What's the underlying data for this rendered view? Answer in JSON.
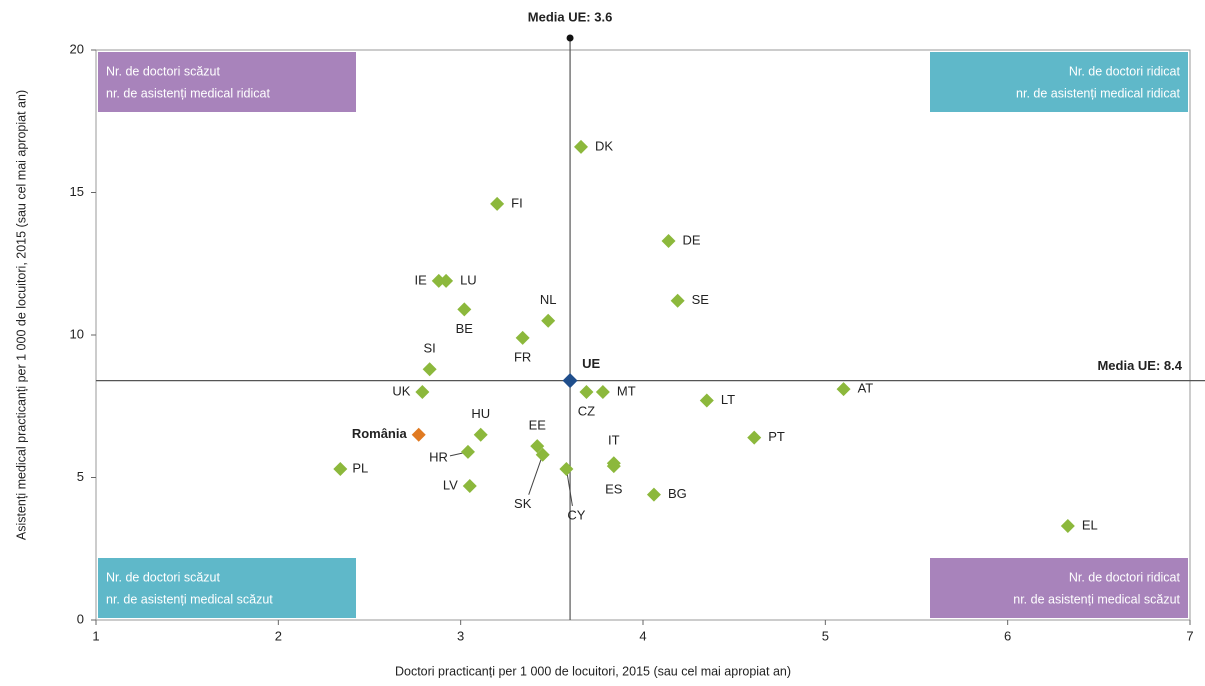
{
  "chart_data": {
    "type": "scatter",
    "x_label": "Doctori practicanți per 1 000 de locuitori, 2015 (sau cel mai apropiat an)",
    "y_label": "Asistenți medical practicanți per 1 000 de locuitori, 2015 (sau cel mai apropiat an)",
    "xlim": [
      1,
      7
    ],
    "ylim": [
      0,
      20
    ],
    "xticks": [
      1,
      2,
      3,
      4,
      5,
      6,
      7
    ],
    "yticks": [
      0,
      5,
      10,
      15,
      20
    ],
    "mean_x": {
      "value": 3.6,
      "label": "Media UE: 3.6"
    },
    "mean_y": {
      "value": 8.4,
      "label": "Media UE: 8.4"
    },
    "quadrants": [
      {
        "corner": "top-left",
        "color": "#a883bb",
        "lines": [
          "Nr. de doctori scăzut",
          "nr. de asistenți medical ridicat"
        ]
      },
      {
        "corner": "top-right",
        "color": "#5fb8c9",
        "lines": [
          "Nr. de doctori ridicat",
          "nr. de asistenți medical ridicat"
        ]
      },
      {
        "corner": "bottom-left",
        "color": "#5fb8c9",
        "lines": [
          "Nr. de doctori scăzut",
          "nr. de asistenți medical scăzut"
        ]
      },
      {
        "corner": "bottom-right",
        "color": "#a883bb",
        "lines": [
          "Nr. de doctori ridicat",
          "nr. de asistenți medical scăzut"
        ]
      }
    ],
    "points": [
      {
        "label": "DK",
        "x": 3.66,
        "y": 16.6,
        "color": "#8cb83c"
      },
      {
        "label": "FI",
        "x": 3.2,
        "y": 14.6,
        "color": "#8cb83c"
      },
      {
        "label": "DE",
        "x": 4.14,
        "y": 13.3,
        "color": "#8cb83c"
      },
      {
        "label": "IE",
        "x": 2.88,
        "y": 11.9,
        "color": "#8cb83c"
      },
      {
        "label": "LU",
        "x": 2.92,
        "y": 11.9,
        "color": "#8cb83c"
      },
      {
        "label": "BE",
        "x": 3.02,
        "y": 10.9,
        "color": "#8cb83c"
      },
      {
        "label": "NL",
        "x": 3.48,
        "y": 10.5,
        "color": "#8cb83c"
      },
      {
        "label": "SE",
        "x": 4.19,
        "y": 11.2,
        "color": "#8cb83c"
      },
      {
        "label": "FR",
        "x": 3.34,
        "y": 9.9,
        "color": "#8cb83c"
      },
      {
        "label": "SI",
        "x": 2.83,
        "y": 8.8,
        "color": "#8cb83c"
      },
      {
        "label": "UE",
        "x": 3.6,
        "y": 8.4,
        "color": "#1f4e8c"
      },
      {
        "label": "UK",
        "x": 2.79,
        "y": 8.0,
        "color": "#8cb83c"
      },
      {
        "label": "CZ",
        "x": 3.69,
        "y": 8.0,
        "color": "#8cb83c"
      },
      {
        "label": "MT",
        "x": 3.78,
        "y": 8.0,
        "color": "#8cb83c"
      },
      {
        "label": "AT",
        "x": 5.1,
        "y": 8.1,
        "color": "#8cb83c"
      },
      {
        "label": "LT",
        "x": 4.35,
        "y": 7.7,
        "color": "#8cb83c"
      },
      {
        "label": "HU",
        "x": 3.11,
        "y": 6.5,
        "color": "#8cb83c"
      },
      {
        "label": "România",
        "x": 2.77,
        "y": 6.5,
        "color": "#e07a21"
      },
      {
        "label": "PT",
        "x": 4.61,
        "y": 6.4,
        "color": "#8cb83c"
      },
      {
        "label": "EE",
        "x": 3.42,
        "y": 6.1,
        "color": "#8cb83c"
      },
      {
        "label": "HR",
        "x": 3.04,
        "y": 5.9,
        "color": "#8cb83c"
      },
      {
        "label": "SK",
        "x": 3.45,
        "y": 5.8,
        "color": "#8cb83c"
      },
      {
        "label": "IT",
        "x": 3.84,
        "y": 5.5,
        "color": "#8cb83c"
      },
      {
        "label": "ES",
        "x": 3.84,
        "y": 5.4,
        "color": "#8cb83c"
      },
      {
        "label": "PL",
        "x": 2.34,
        "y": 5.3,
        "color": "#8cb83c"
      },
      {
        "label": "CY",
        "x": 3.58,
        "y": 5.3,
        "color": "#8cb83c"
      },
      {
        "label": "LV",
        "x": 3.05,
        "y": 4.7,
        "color": "#8cb83c"
      },
      {
        "label": "BG",
        "x": 4.06,
        "y": 4.4,
        "color": "#8cb83c"
      },
      {
        "label": "EL",
        "x": 6.33,
        "y": 3.3,
        "color": "#8cb83c"
      }
    ]
  }
}
